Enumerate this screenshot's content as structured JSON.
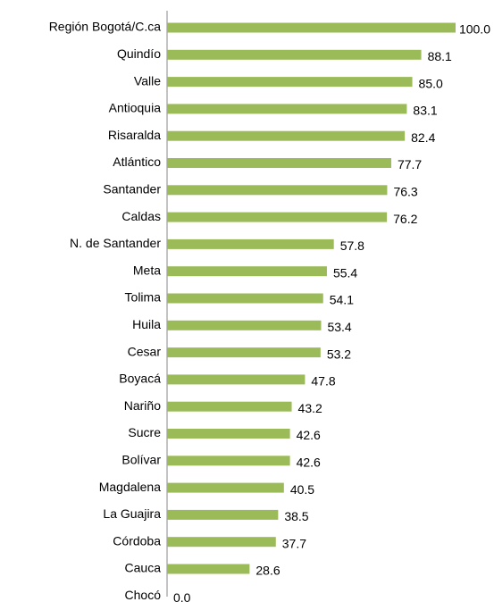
{
  "chart_data": {
    "type": "barh",
    "categories": [
      "Región Bogotá/C.ca",
      "Quindío",
      "Valle",
      "Antioquia",
      "Risaralda",
      "Atlántico",
      "Santander",
      "Caldas",
      "N. de Santander",
      "Meta",
      "Tolima",
      "Huila",
      "Cesar",
      "Boyacá",
      "Nariño",
      "Sucre",
      "Bolívar",
      "Magdalena",
      "La Guajira",
      "Córdoba",
      "Cauca",
      "Chocó"
    ],
    "values": [
      100,
      88.1,
      85,
      83.1,
      82.4,
      77.7,
      76.3,
      76.2,
      57.8,
      55.4,
      54.1,
      53.4,
      53.2,
      47.8,
      43.2,
      42.6,
      42.6,
      40.5,
      38.5,
      37.7,
      28.6,
      0
    ],
    "value_labels": [
      "100.0",
      "88.1",
      "85.0",
      "83.1",
      "82.4",
      "77.7",
      "76.3",
      "76.2",
      "57.8",
      "55.4",
      "54.1",
      "53.4",
      "53.2",
      "47.8",
      "43.2",
      "42.6",
      "42.6",
      "40.5",
      "38.5",
      "37.7",
      "28.6",
      "0.0"
    ],
    "color": "#9bbb59",
    "xlim": [
      0,
      100
    ]
  }
}
